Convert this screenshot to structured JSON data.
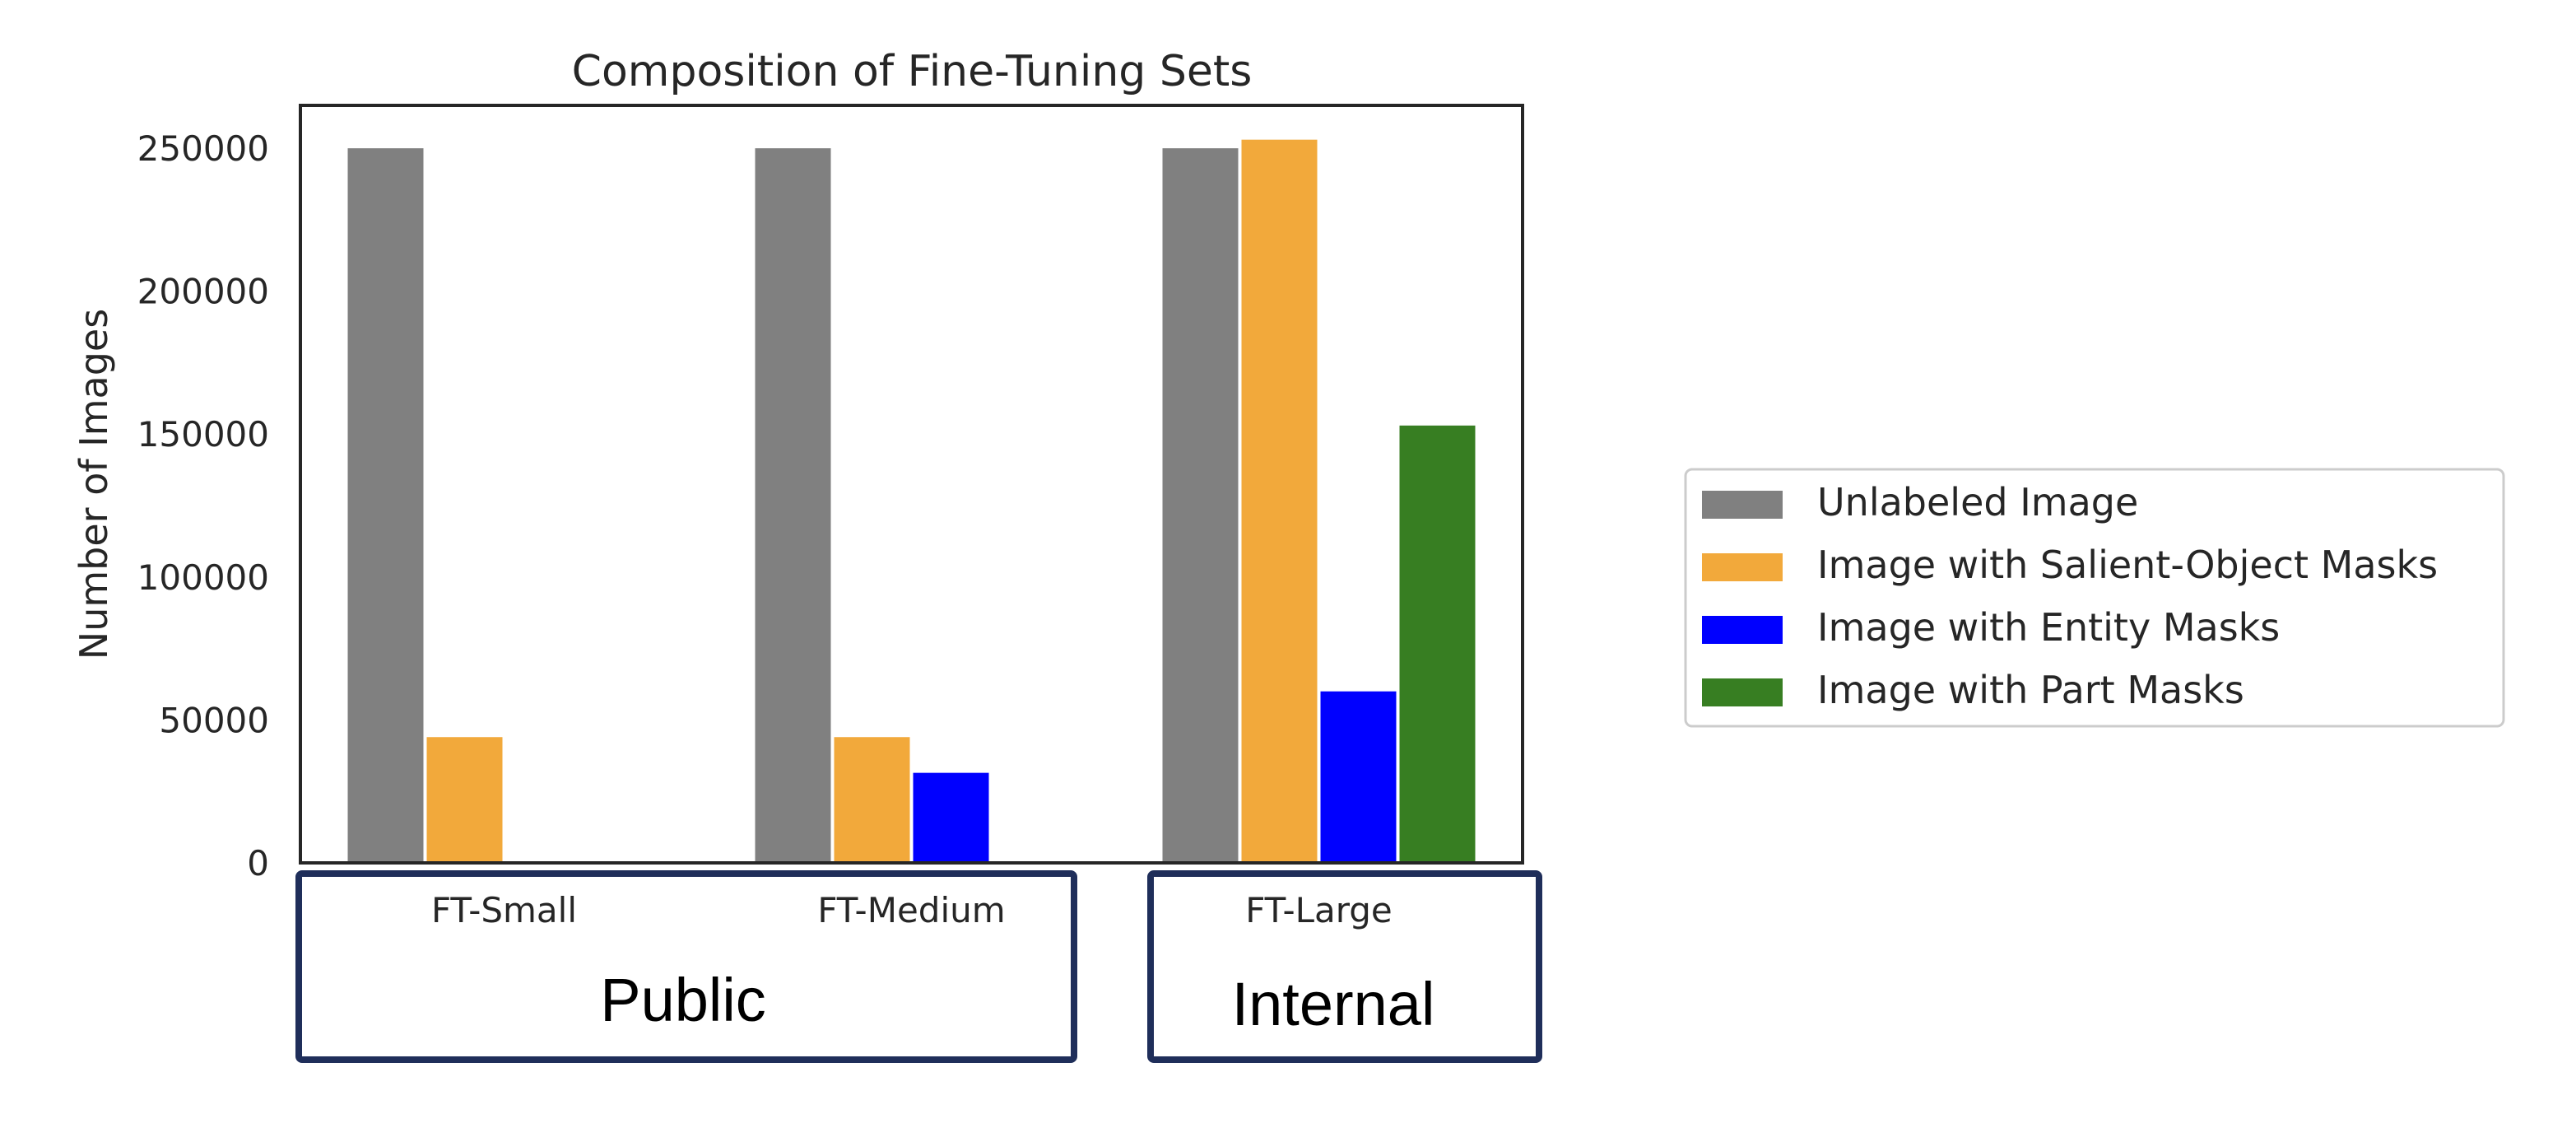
{
  "chart_data": {
    "type": "bar",
    "title": "Composition of Fine-Tuning Sets",
    "xlabel": "",
    "ylabel": "Number of Images",
    "ylim": [
      0,
      265000
    ],
    "yticks": [
      "0",
      "50000",
      "100000",
      "150000",
      "200000",
      "250000"
    ],
    "ytick_values": [
      0,
      50000,
      100000,
      150000,
      200000,
      250000
    ],
    "categories": [
      "FT-Small",
      "FT-Medium",
      "FT-Large"
    ],
    "series": [
      {
        "name": "Unlabeled Image",
        "color": "#808080",
        "values": [
          250000,
          250000,
          250000
        ]
      },
      {
        "name": "Image with Salient-Object Masks",
        "color": "#f2a93b",
        "values": [
          44000,
          44000,
          253000
        ]
      },
      {
        "name": "Image with Entity Masks",
        "color": "#0000ff",
        "values": [
          null,
          31500,
          60000
        ]
      },
      {
        "name": "Image with Part Masks",
        "color": "#377e22",
        "values": [
          null,
          null,
          153000
        ]
      }
    ],
    "grid": false,
    "legend": "right",
    "groups": [
      {
        "label": "Public",
        "categories": [
          "FT-Small",
          "FT-Medium"
        ]
      },
      {
        "label": "Internal",
        "categories": [
          "FT-Large"
        ]
      }
    ],
    "group_box_color": "#1f2e5a"
  }
}
